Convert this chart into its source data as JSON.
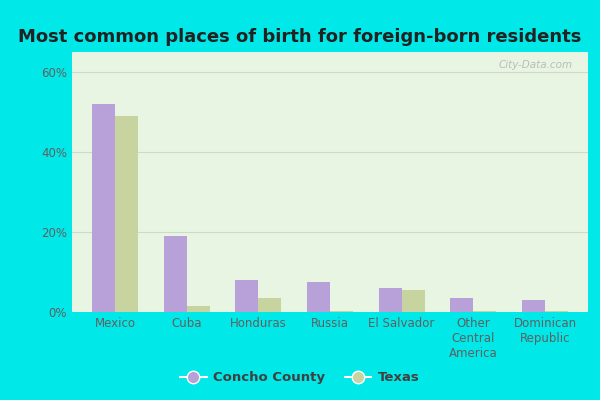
{
  "title": "Most common places of birth for foreign-born residents",
  "categories": [
    "Mexico",
    "Cuba",
    "Honduras",
    "Russia",
    "El Salvador",
    "Other\nCentral\nAmerica",
    "Dominican\nRepublic"
  ],
  "concho_county": [
    52,
    19,
    8,
    7.5,
    6,
    3.5,
    3
  ],
  "texas": [
    49,
    1.5,
    3.5,
    0.3,
    5.5,
    0.2,
    0.2
  ],
  "concho_color": "#b8a0d8",
  "texas_color": "#c8d4a0",
  "bg_outer": "#00e8e8",
  "bg_plot": "#e8f5e2",
  "ylabel_ticks": [
    "0%",
    "20%",
    "40%",
    "60%"
  ],
  "ytick_vals": [
    0,
    20,
    40,
    60
  ],
  "ylim": [
    0,
    65
  ],
  "bar_width": 0.32,
  "legend_labels": [
    "Concho County",
    "Texas"
  ],
  "watermark": "City-Data.com",
  "title_fontsize": 13,
  "tick_fontsize": 8.5,
  "legend_fontsize": 9.5,
  "axis_label_color": "#606060",
  "grid_color": "#d0d8c8"
}
